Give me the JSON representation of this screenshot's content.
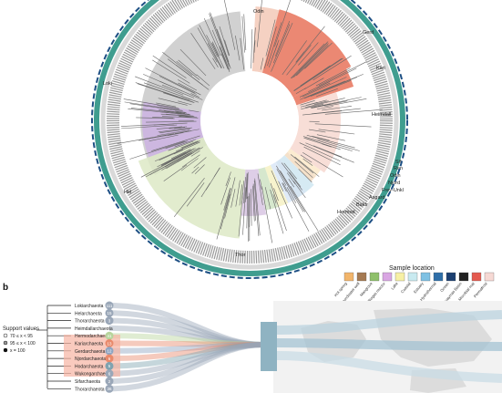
{
  "tree": {
    "clades": [
      {
        "id": "loki",
        "label": "Loki",
        "color": "#c9c9c9"
      },
      {
        "id": "odin",
        "label": "Odin",
        "color": "#f3c9b7"
      },
      {
        "id": "gerd",
        "label": "Gerd",
        "color": "#e8735a"
      },
      {
        "id": "kari",
        "label": "Kari",
        "color": "#e8735a"
      },
      {
        "id": "heimdall",
        "label": "Heimdall",
        "color": "#f7d8d0"
      },
      {
        "id": "sif",
        "label": "Sif",
        "color": "#fbe9c9"
      },
      {
        "id": "ran",
        "label": "Ran",
        "color": "#f3dcc1"
      },
      {
        "id": "odin2",
        "label": "Odin",
        "color": "#cfe6f1"
      },
      {
        "id": "njord",
        "label": "Njord",
        "color": "#cfe0f0"
      },
      {
        "id": "freyr",
        "label": "Frey-Unkl",
        "color": "#d9e6f7"
      },
      {
        "id": "asgard",
        "label": "Asgard",
        "color": "#f6f1c4"
      },
      {
        "id": "baldr",
        "label": "Baldr",
        "color": "#cfe3c4"
      },
      {
        "id": "hermod",
        "label": "Hermod",
        "color": "#d8c6e3"
      },
      {
        "id": "thor",
        "label": "Thor",
        "color": "#dde9c6"
      },
      {
        "id": "hel",
        "label": "Hel",
        "color": "#cdb3e3"
      }
    ]
  },
  "legend": {
    "title": "Sample location",
    "items": [
      {
        "label": "Hot spring",
        "color": "#f2b56b"
      },
      {
        "label": "Groundwater well",
        "color": "#a57a52"
      },
      {
        "label": "Mangrove",
        "color": "#8fc06b"
      },
      {
        "label": "Biogas reactor",
        "color": "#d9a6e3"
      },
      {
        "label": "Lake",
        "color": "#f7f0a5"
      },
      {
        "label": "Coastal",
        "color": "#c9eaf0"
      },
      {
        "label": "Estuary",
        "color": "#7fc1e3"
      },
      {
        "label": "Hydrothermal",
        "color": "#2f6fa8"
      },
      {
        "label": "Ocean",
        "color": "#1c3f70"
      },
      {
        "label": "Guaymas Basin",
        "color": "#222222"
      },
      {
        "label": "Microbial mat",
        "color": "#e45a4f"
      },
      {
        "label": "Permafrost",
        "color": "#f6d9d4"
      }
    ]
  },
  "panel_b": {
    "panel_letter": "b",
    "support_title": "Support values",
    "support_items": [
      "70 ≤ x < 95",
      "95 ≤ x < 100",
      "x = 100"
    ],
    "clades": [
      {
        "label": "Lokiarchaeota",
        "count": "111",
        "color": "#9aa7b8"
      },
      {
        "label": "Helarchaeota",
        "count": "15",
        "color": "#9aa7b8"
      },
      {
        "label": "Thorarchaeota",
        "count": "3",
        "color": "#9aa7b8"
      },
      {
        "label": "Heimdallarchaeota",
        "count": "",
        "color": "#9aa7b8"
      },
      {
        "label": "Hermodarchaeota",
        "count": "41",
        "color": "#b7d49c"
      },
      {
        "label": "Kariarchaeota",
        "count": "13",
        "color": "#e98a6c"
      },
      {
        "label": "Gerdarchaeota",
        "count": "12",
        "color": "#8fa5c2"
      },
      {
        "label": "Njordarchaeota",
        "count": "6",
        "color": "#e98a6c"
      },
      {
        "label": "Hodarchaeota",
        "count": "5",
        "color": "#7fa3b0"
      },
      {
        "label": "Wukongarchaeota",
        "count": "6",
        "color": "#9aa7b8"
      },
      {
        "label": "Sifarchaeota",
        "count": "2",
        "color": "#9aa7b8"
      },
      {
        "label": "Thorarchaeota",
        "count": "36",
        "color": "#9aa7b8"
      }
    ]
  }
}
